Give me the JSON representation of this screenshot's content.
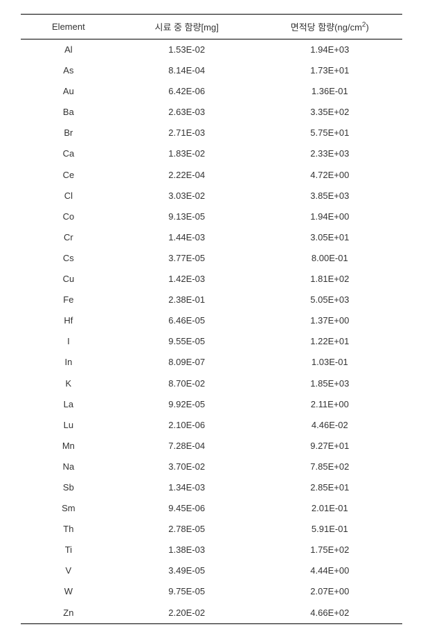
{
  "table": {
    "type": "table",
    "columns": [
      {
        "key": "element",
        "label": "Element"
      },
      {
        "key": "sample_mg",
        "label": "시료 중 함량[mg]"
      },
      {
        "key": "area_ng_cm2",
        "label_prefix": "면적당 함량(ng/cm",
        "label_sup": "2",
        "label_suffix": ")"
      }
    ],
    "rows": [
      {
        "element": "Al",
        "sample_mg": "1.53E-02",
        "area_ng_cm2": "1.94E+03"
      },
      {
        "element": "As",
        "sample_mg": "8.14E-04",
        "area_ng_cm2": "1.73E+01"
      },
      {
        "element": "Au",
        "sample_mg": "6.42E-06",
        "area_ng_cm2": "1.36E-01"
      },
      {
        "element": "Ba",
        "sample_mg": "2.63E-03",
        "area_ng_cm2": "3.35E+02"
      },
      {
        "element": "Br",
        "sample_mg": "2.71E-03",
        "area_ng_cm2": "5.75E+01"
      },
      {
        "element": "Ca",
        "sample_mg": "1.83E-02",
        "area_ng_cm2": "2.33E+03"
      },
      {
        "element": "Ce",
        "sample_mg": "2.22E-04",
        "area_ng_cm2": "4.72E+00"
      },
      {
        "element": "Cl",
        "sample_mg": "3.03E-02",
        "area_ng_cm2": "3.85E+03"
      },
      {
        "element": "Co",
        "sample_mg": "9.13E-05",
        "area_ng_cm2": "1.94E+00"
      },
      {
        "element": "Cr",
        "sample_mg": "1.44E-03",
        "area_ng_cm2": "3.05E+01"
      },
      {
        "element": "Cs",
        "sample_mg": "3.77E-05",
        "area_ng_cm2": "8.00E-01"
      },
      {
        "element": "Cu",
        "sample_mg": "1.42E-03",
        "area_ng_cm2": "1.81E+02"
      },
      {
        "element": "Fe",
        "sample_mg": "2.38E-01",
        "area_ng_cm2": "5.05E+03"
      },
      {
        "element": "Hf",
        "sample_mg": "6.46E-05",
        "area_ng_cm2": "1.37E+00"
      },
      {
        "element": "I",
        "sample_mg": "9.55E-05",
        "area_ng_cm2": "1.22E+01"
      },
      {
        "element": "In",
        "sample_mg": "8.09E-07",
        "area_ng_cm2": "1.03E-01"
      },
      {
        "element": "K",
        "sample_mg": "8.70E-02",
        "area_ng_cm2": "1.85E+03"
      },
      {
        "element": "La",
        "sample_mg": "9.92E-05",
        "area_ng_cm2": "2.11E+00"
      },
      {
        "element": "Lu",
        "sample_mg": "2.10E-06",
        "area_ng_cm2": "4.46E-02"
      },
      {
        "element": "Mn",
        "sample_mg": "7.28E-04",
        "area_ng_cm2": "9.27E+01"
      },
      {
        "element": "Na",
        "sample_mg": "3.70E-02",
        "area_ng_cm2": "7.85E+02"
      },
      {
        "element": "Sb",
        "sample_mg": "1.34E-03",
        "area_ng_cm2": "2.85E+01"
      },
      {
        "element": "Sm",
        "sample_mg": "9.45E-06",
        "area_ng_cm2": "2.01E-01"
      },
      {
        "element": "Th",
        "sample_mg": "2.78E-05",
        "area_ng_cm2": "5.91E-01"
      },
      {
        "element": "Ti",
        "sample_mg": "1.38E-03",
        "area_ng_cm2": "1.75E+02"
      },
      {
        "element": "V",
        "sample_mg": "3.49E-05",
        "area_ng_cm2": "4.44E+00"
      },
      {
        "element": "W",
        "sample_mg": "9.75E-05",
        "area_ng_cm2": "2.07E+00"
      },
      {
        "element": "Zn",
        "sample_mg": "2.20E-02",
        "area_ng_cm2": "4.66E+02"
      }
    ],
    "colors": {
      "text": "#333333",
      "border": "#000000",
      "background": "#ffffff"
    },
    "fontsize_header": 13,
    "fontsize_cell": 13
  }
}
